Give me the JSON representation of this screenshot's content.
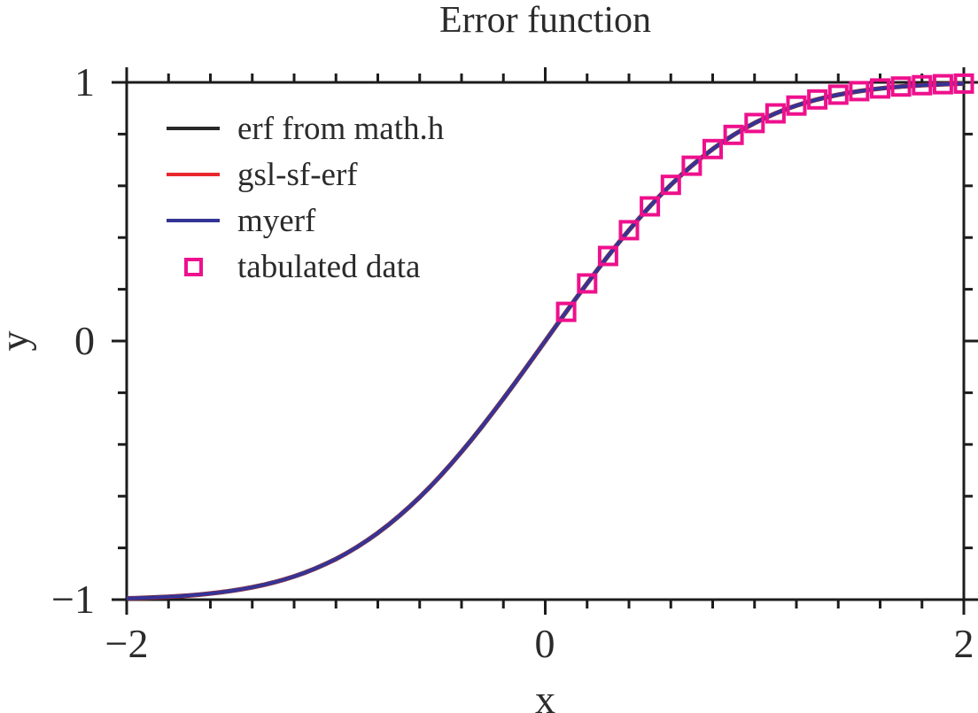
{
  "chart_data": {
    "type": "line",
    "title": "Error function",
    "xlabel": "x",
    "ylabel": "y",
    "xlim": [
      -2,
      2
    ],
    "ylim": [
      -1,
      1
    ],
    "x_major_ticks": [
      -2,
      0,
      2
    ],
    "x_tick_labels": [
      "−2",
      "0",
      "2"
    ],
    "y_major_ticks": [
      1,
      0,
      -1
    ],
    "y_tick_labels": [
      "1",
      "0",
      "−1"
    ],
    "minor_tick_step": 0.2,
    "grid": false,
    "tick_direction": "out",
    "legend_position": "upper-left",
    "axis_color": "#1c1c1c",
    "series": [
      {
        "name": "erf from math.h",
        "color": "#282828",
        "type": "line",
        "data": "curve"
      },
      {
        "name": "gsl-sf-erf",
        "color": "#e8282d",
        "type": "line",
        "data": "curve"
      },
      {
        "name": "myerf",
        "color": "#343497",
        "type": "line",
        "data": "curve"
      }
    ],
    "curve": {
      "x_start": -2.0,
      "x_step": 0.05,
      "y": [
        -0.9953,
        -0.9942,
        -0.9928,
        -0.9911,
        -0.9891,
        -0.9867,
        -0.9838,
        -0.9804,
        -0.9764,
        -0.9716,
        -0.9661,
        -0.9597,
        -0.9523,
        -0.9438,
        -0.934,
        -0.9229,
        -0.9103,
        -0.8961,
        -0.8802,
        -0.8624,
        -0.8427,
        -0.8209,
        -0.7969,
        -0.7707,
        -0.7421,
        -0.7112,
        -0.6778,
        -0.642,
        -0.6039,
        -0.5633,
        -0.5205,
        -0.4755,
        -0.4284,
        -0.3794,
        -0.3286,
        -0.2763,
        -0.2227,
        -0.168,
        -0.1125,
        -0.0564,
        0.0,
        0.0564,
        0.1125,
        0.168,
        0.2227,
        0.2763,
        0.3286,
        0.3794,
        0.4284,
        0.4755,
        0.5205,
        0.5633,
        0.6039,
        0.642,
        0.6778,
        0.7112,
        0.7421,
        0.7707,
        0.7969,
        0.8209,
        0.8427,
        0.8624,
        0.8802,
        0.8961,
        0.9103,
        0.9229,
        0.934,
        0.9438,
        0.9523,
        0.9597,
        0.9661,
        0.9716,
        0.9764,
        0.9804,
        0.9838,
        0.9867,
        0.9891,
        0.9911,
        0.9928,
        0.9942,
        0.9953
      ]
    },
    "tabulated": {
      "name": "tabulated data",
      "marker": "open-square",
      "color": "#ee108c",
      "x": [
        0.1,
        0.2,
        0.3,
        0.4,
        0.5,
        0.6,
        0.7,
        0.8,
        0.9,
        1.0,
        1.1,
        1.2,
        1.3,
        1.4,
        1.5,
        1.6,
        1.7,
        1.8,
        1.9,
        2.0
      ],
      "y": [
        0.1125,
        0.2227,
        0.3286,
        0.4284,
        0.5205,
        0.6039,
        0.6778,
        0.7421,
        0.7969,
        0.8427,
        0.8802,
        0.9103,
        0.934,
        0.9523,
        0.9661,
        0.9763,
        0.9838,
        0.9891,
        0.9928,
        0.9953
      ]
    }
  }
}
